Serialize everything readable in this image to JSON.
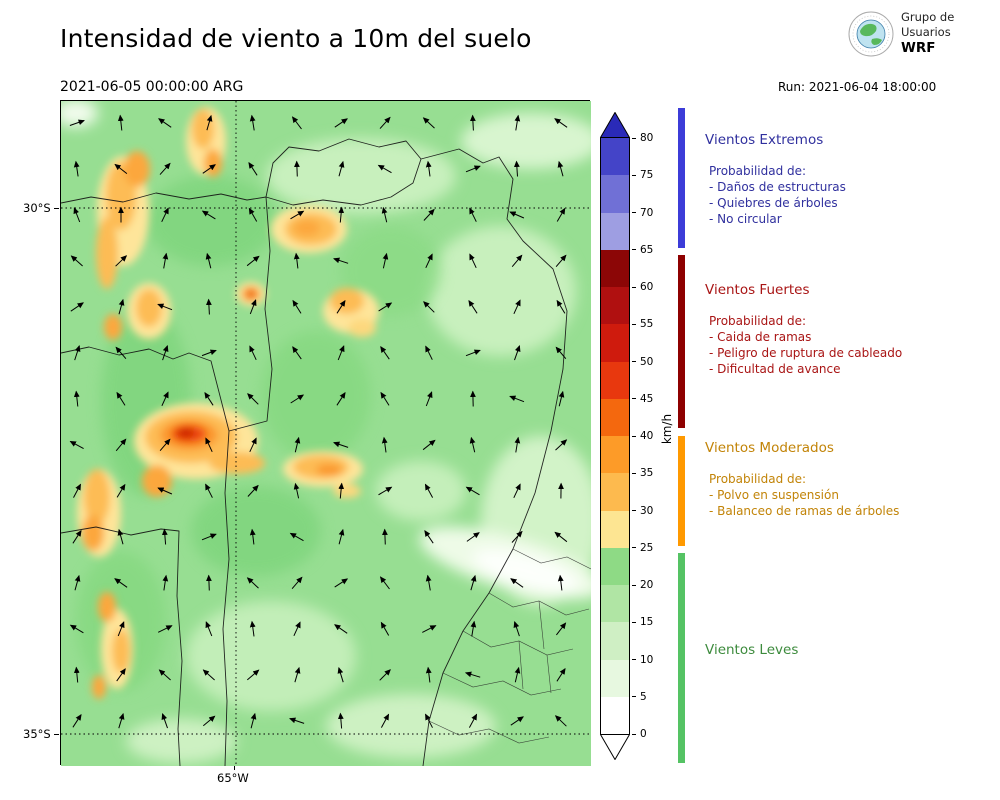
{
  "header": {
    "title": "Intensidad de viento a 10m del suelo",
    "valid_time": "2021-06-05 00:00:00 ARG",
    "run_label": "Run: 2021-06-04 18:00:00",
    "logo": {
      "org": "Grupo de",
      "org2": "Usuarios",
      "brand": "WRF"
    }
  },
  "map": {
    "lat_ticks": [
      "30°S",
      "35°S"
    ],
    "lon_ticks": [
      "65°W"
    ]
  },
  "colorbar": {
    "unit": "km/h",
    "ticks": [
      "0",
      "5",
      "10",
      "15",
      "20",
      "25",
      "30",
      "35",
      "40",
      "45",
      "50",
      "55",
      "60",
      "65",
      "70",
      "75",
      "80"
    ],
    "colors": [
      "#ffffff",
      "#e7f8e0",
      "#cfefc4",
      "#b0e5a4",
      "#8eda85",
      "#fde592",
      "#fdba4e",
      "#fd9b28",
      "#f4680e",
      "#e8380e",
      "#cf1b0d",
      "#b01010",
      "#8c0606",
      "#9e9ee2",
      "#7070d6",
      "#4444c8"
    ],
    "over_color": "#2a2ab8",
    "under_color": "#ffffff"
  },
  "legend": {
    "categories": [
      {
        "name": "Vientos Extremos",
        "text_color": "#30309e",
        "bar_color": "#3c3cd8",
        "intro": "Probabilidad de:",
        "items": [
          "- Daños de estructuras",
          "- Quiebres de árboles",
          "- No circular"
        ]
      },
      {
        "name": "Vientos Fuertes",
        "text_color": "#a91515",
        "bar_color": "#8e0000",
        "intro": "Probabilidad de:",
        "items": [
          "- Caida de ramas",
          "- Peligro de ruptura de cableado",
          "- Dificultad de avance"
        ]
      },
      {
        "name": "Vientos Moderados",
        "text_color": "#c28408",
        "bar_color": "#ff9900",
        "intro": "Probabilidad de:",
        "items": [
          "- Polvo en suspensión",
          "- Balanceo de ramas de árboles"
        ]
      },
      {
        "name": "Vientos Leves",
        "text_color": "#3d8b3d",
        "bar_color": "#55c364",
        "intro": "",
        "items": []
      }
    ]
  },
  "chart_data": {
    "type": "heatmap",
    "title": "Intensidad de viento a 10m del suelo",
    "valid_time": "2021-06-05 00:00:00 ARG",
    "model_run": "Run: 2021-06-04 18:00:00",
    "unit": "km/h",
    "colorbar_ticks": [
      0,
      5,
      10,
      15,
      20,
      25,
      30,
      35,
      40,
      45,
      50,
      55,
      60,
      65,
      70,
      75,
      80
    ],
    "lat_ticks": [
      "30°S",
      "35°S"
    ],
    "lon_ticks": [
      "65°W"
    ],
    "legend_categories": [
      {
        "label": "Vientos Leves",
        "approx_range_kmh": [
          0,
          25
        ]
      },
      {
        "label": "Vientos Moderados",
        "approx_range_kmh": [
          25,
          40
        ]
      },
      {
        "label": "Vientos Fuertes",
        "approx_range_kmh": [
          40,
          65
        ]
      },
      {
        "label": "Vientos Extremos",
        "approx_range_kmh": [
          65,
          80
        ]
      }
    ],
    "layout": {
      "colorbar_position": "right-of-map",
      "grid": "dotted at 30S, 35S, 65W",
      "overlay": "wind direction arrows"
    }
  }
}
